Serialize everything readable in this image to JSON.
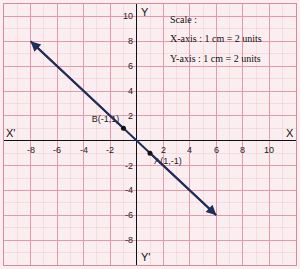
{
  "chart_data": {
    "type": "line",
    "x": [
      -8,
      -1,
      1,
      6
    ],
    "values": [
      8,
      1,
      -1,
      -6
    ],
    "color": "#1f2f5a",
    "points": [
      {
        "label": "B(-1,1)",
        "x": -1,
        "y": 1
      },
      {
        "label": "A(1,-1)",
        "x": 1,
        "y": -1
      }
    ],
    "marker": "circle",
    "annotations": [
      "Scale :",
      "X-axis : 1 cm = 2 units",
      "Y-axis : 1 cm = 2 units"
    ],
    "axis_labels": {
      "x": "X",
      "x_neg": "X'",
      "y": "Y",
      "y_neg": "Y'"
    },
    "xlim": [
      -10,
      12
    ],
    "ylim": [
      -10,
      11
    ],
    "xticks": [
      -8,
      -6,
      -4,
      -2,
      2,
      4,
      6,
      8,
      10
    ],
    "yticks": [
      -8,
      -6,
      -4,
      -2,
      2,
      4,
      6,
      8,
      10
    ],
    "grid": true
  }
}
